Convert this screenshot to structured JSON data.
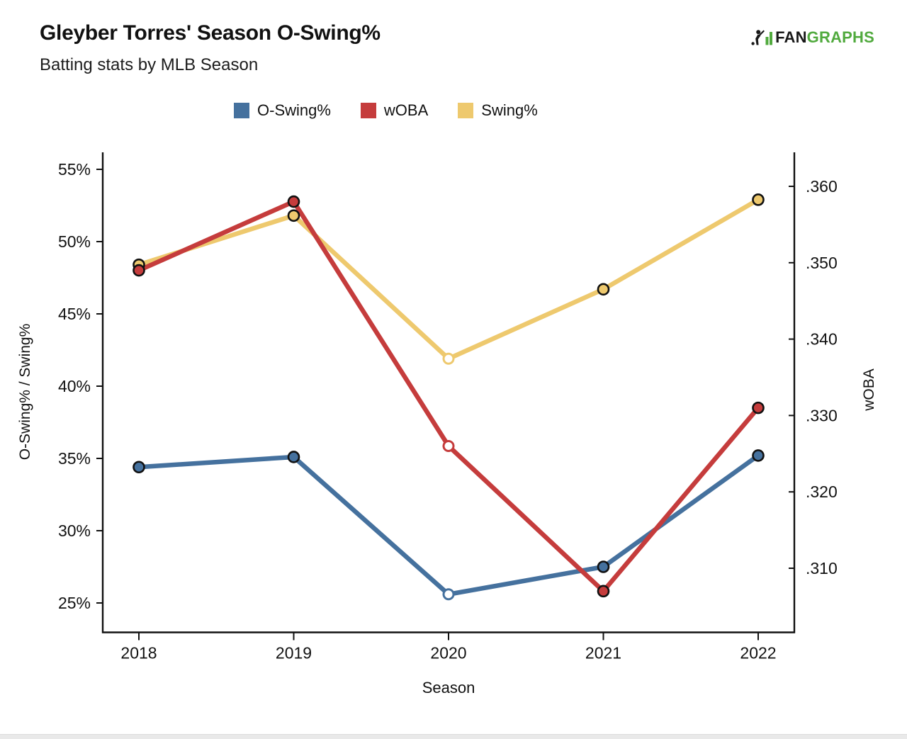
{
  "header": {
    "title": "Gleyber Torres' Season O-Swing%",
    "subtitle": "Batting stats by MLB Season",
    "logo": {
      "fan": "FAN",
      "graphs": "GRAPHS",
      "icon": "fangraphs-batter-bars-icon",
      "green": "#51aa3e",
      "black": "#181818"
    }
  },
  "chart_data": {
    "type": "line",
    "title": "Gleyber Torres' Season O-Swing%",
    "subtitle": "Batting stats by MLB Season",
    "x": [
      2018,
      2019,
      2020,
      2021,
      2022
    ],
    "x_tick_labels": [
      "2018",
      "2019",
      "2020",
      "2021",
      "2022"
    ],
    "xlabel": "Season",
    "legend_position": "top",
    "grid": false,
    "axes": {
      "left": {
        "label": "O-Swing% / Swing%",
        "ticks": [
          25,
          30,
          35,
          40,
          45,
          50,
          55
        ],
        "tick_labels": [
          "25%",
          "30%",
          "35%",
          "40%",
          "45%",
          "50%",
          "55%"
        ],
        "range": [
          23,
          56.2
        ]
      },
      "right": {
        "label": "wOBA",
        "ticks": [
          0.31,
          0.32,
          0.33,
          0.34,
          0.35,
          0.36
        ],
        "tick_labels": [
          ".310",
          ".320",
          ".330",
          ".340",
          ".350",
          ".360"
        ],
        "range": [
          0.3015,
          0.3645
        ]
      }
    },
    "series": [
      {
        "name": "O-Swing%",
        "axis": "left",
        "color": "#45719e",
        "z": 1,
        "values": [
          34.4,
          35.1,
          25.6,
          27.5,
          35.2
        ]
      },
      {
        "name": "wOBA",
        "axis": "right",
        "color": "#c53c3c",
        "z": 3,
        "values": [
          0.349,
          0.358,
          0.326,
          0.307,
          0.331
        ]
      },
      {
        "name": "Swing%",
        "axis": "left",
        "color": "#eec96e",
        "z": 2,
        "values": [
          48.4,
          51.8,
          41.9,
          46.7,
          52.9
        ]
      }
    ],
    "open_marker_x": 2020,
    "marker_note": "2020 season points drawn as open (white-filled) circles; all other points filled with series color and outlined in black"
  }
}
